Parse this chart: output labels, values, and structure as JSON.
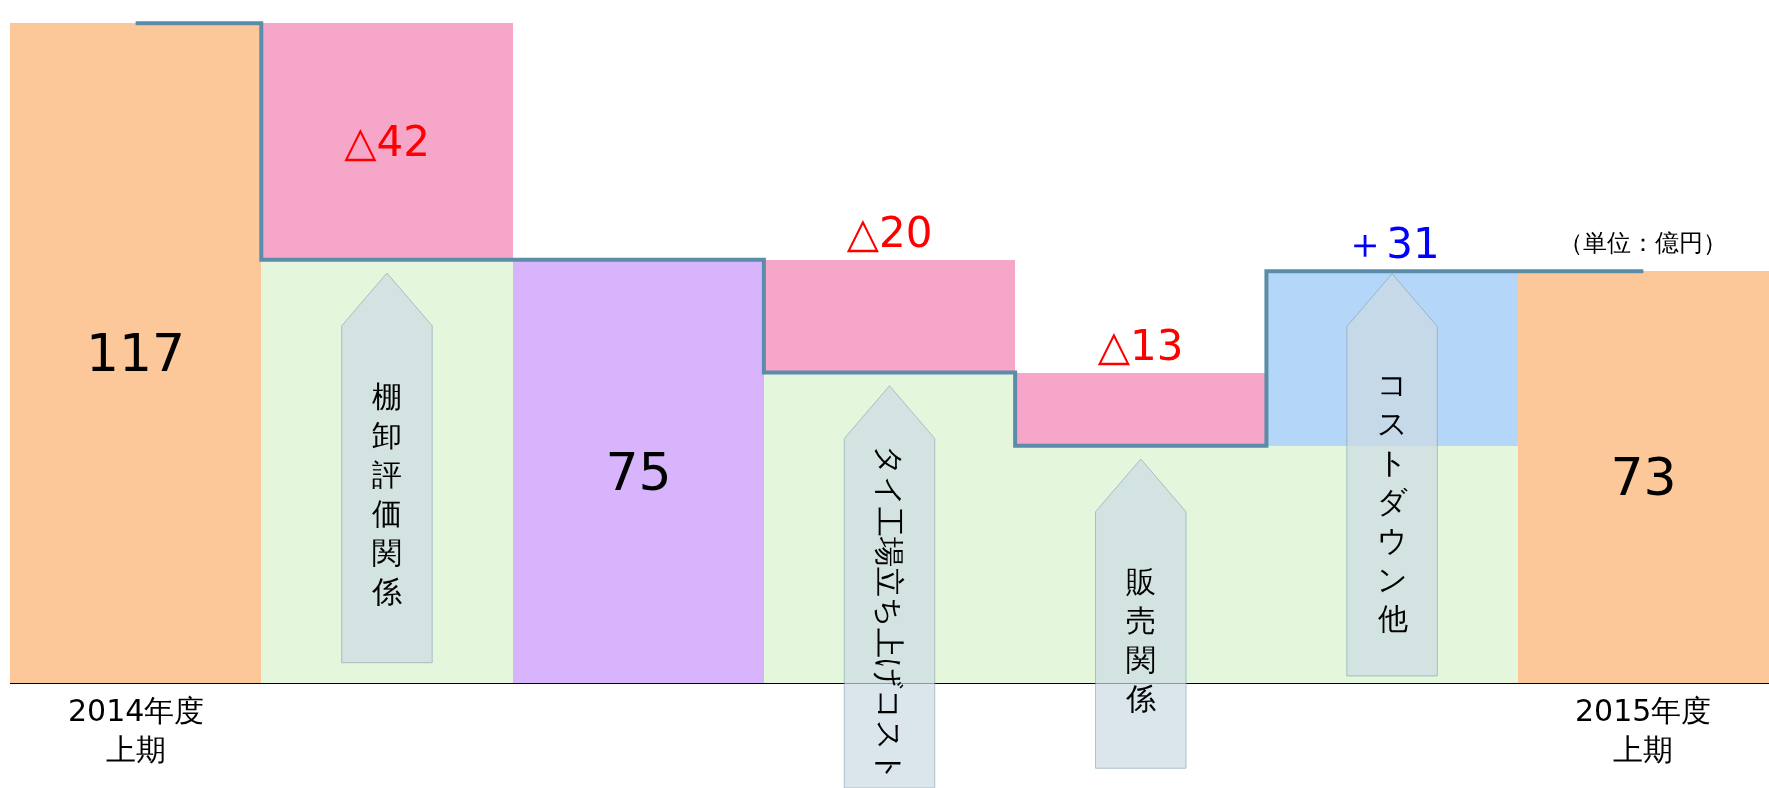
{
  "chart_data": {
    "type": "bar",
    "stacked": true,
    "categories": [
      "2014年度上期",
      "棚卸評価関係",
      null,
      "タイ工場立ち上げコスト",
      "販売関係",
      "コストダウン他",
      "2015年度上期"
    ],
    "series": [
      {
        "colors": [
          "#fcc89a",
          "#e4f7dc",
          "#d8b4fc",
          "#e4f7dc",
          "#e4f7dc",
          "#e4f7dc",
          "#fcc89a"
        ],
        "values": [
          117,
          75,
          75,
          55,
          42,
          42,
          73
        ],
        "value_labels": [
          "117",
          null,
          "75",
          null,
          null,
          null,
          "73"
        ]
      },
      {
        "colors": [
          "#f6a6c8",
          "#f6a6c8",
          "#f6a6c8",
          "#f6a6c8",
          "#f6a6c8",
          "#b4d6f8",
          "#f6a6c8"
        ],
        "values": [
          null,
          42,
          null,
          20,
          13,
          31,
          null
        ],
        "value_labels": [
          null,
          "△42",
          null,
          "△20",
          "△13",
          "＋31",
          null
        ]
      },
      {
        "type": "step",
        "color": "#5b8ca8",
        "values": [
          117,
          75,
          75,
          55,
          42,
          73,
          73
        ]
      }
    ],
    "annotations": [
      "（単位：億円）"
    ]
  }
}
